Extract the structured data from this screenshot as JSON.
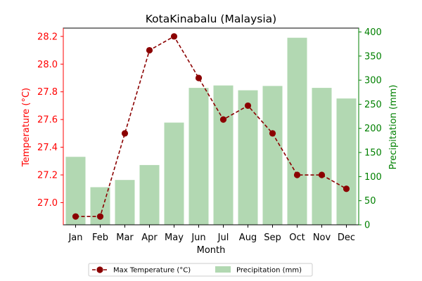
{
  "chart_data": {
    "type": "bar",
    "title": "KotaKinabalu (Malaysia)",
    "xlabel": "Month",
    "ylabel_left": "Temperature (°C)",
    "ylabel_right": "Precipitation (mm)",
    "categories": [
      "Jan",
      "Feb",
      "Mar",
      "Apr",
      "May",
      "Jun",
      "Jul",
      "Aug",
      "Sep",
      "Oct",
      "Nov",
      "Dec"
    ],
    "series": [
      {
        "name": "Max Temperature (°C)",
        "type": "line",
        "axis": "left",
        "color": "#8b0000",
        "values": [
          26.9,
          26.9,
          27.5,
          28.1,
          28.2,
          27.9,
          27.6,
          27.7,
          27.5,
          27.2,
          27.2,
          27.1
        ]
      },
      {
        "name": "Precipitation (mm)",
        "type": "bar",
        "axis": "right",
        "color": "#b2d8b2",
        "values": [
          141,
          78,
          93,
          124,
          212,
          284,
          289,
          279,
          288,
          388,
          284,
          262
        ]
      }
    ],
    "ylim_left": [
      26.84,
      28.26
    ],
    "yticks_left": [
      "27.0",
      "27.2",
      "27.4",
      "27.6",
      "27.8",
      "28.0",
      "28.2"
    ],
    "ylim_right": [
      0,
      408
    ],
    "yticks_right": [
      "0",
      "50",
      "100",
      "150",
      "200",
      "250",
      "300",
      "350",
      "400"
    ],
    "left_axis_color": "#ff0000",
    "right_axis_color": "#008000",
    "grid": false,
    "legend_position": "bottom-center"
  }
}
